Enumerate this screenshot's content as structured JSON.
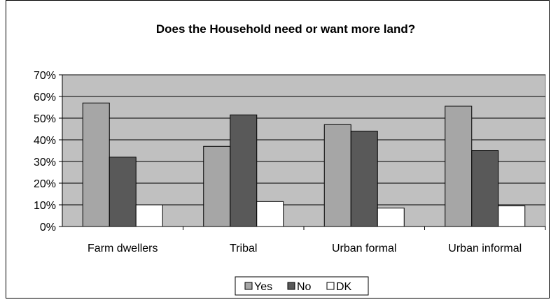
{
  "chart_data": {
    "type": "bar",
    "title": "Does the Household need or want more land?",
    "xlabel": "",
    "ylabel": "",
    "categories": [
      "Farm dwellers",
      "Tribal",
      "Urban formal",
      "Urban informal"
    ],
    "series": [
      {
        "name": "Yes",
        "values": [
          57,
          37,
          47,
          55.5
        ],
        "color": "#a6a6a6"
      },
      {
        "name": "No",
        "values": [
          32,
          51.5,
          44,
          35
        ],
        "color": "#595959"
      },
      {
        "name": "DK",
        "values": [
          10,
          11.5,
          8.5,
          9.5
        ],
        "color": "#ffffff"
      }
    ],
    "ylim": [
      0,
      70
    ],
    "yticks": [
      0,
      10,
      20,
      30,
      40,
      50,
      60,
      70
    ],
    "ytick_format": "percent",
    "grid": true,
    "plot_background": "#c0c0c0",
    "legend_position": "bottom"
  }
}
